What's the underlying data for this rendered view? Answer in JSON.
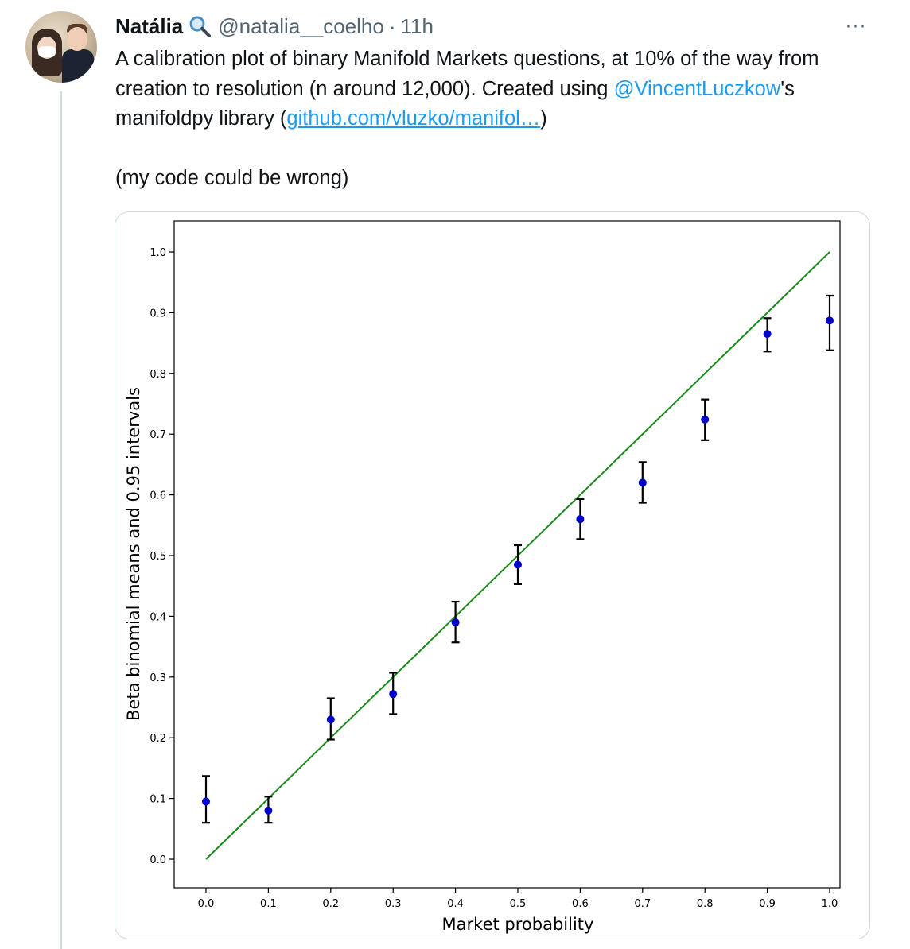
{
  "user": {
    "name": "Natália",
    "emoji_icon": "magnifying-glass-icon",
    "handle": "@natalia__coelho",
    "separator": "·",
    "time": "11h"
  },
  "more_label": "···",
  "tweet": {
    "text_1": "A calibration plot of binary Manifold Markets questions, at 10% of the way from creation to resolution (n around 12,000). Created using ",
    "mention": "@VincentLuczkow",
    "text_2": "'s manifoldpy library (",
    "link": "github.com/vluzko/manifol…",
    "text_3": ")\n\n(my code could be wrong)"
  },
  "chart_data": {
    "type": "scatter",
    "xlabel": "Market probability",
    "ylabel": "Beta binomial means and 0.95 intervals",
    "xlim": [
      0.0,
      1.0
    ],
    "ylim": [
      0.0,
      1.0
    ],
    "x_ticks": [
      "0.0",
      "0.1",
      "0.2",
      "0.3",
      "0.4",
      "0.5",
      "0.6",
      "0.7",
      "0.8",
      "0.9",
      "1.0"
    ],
    "y_ticks": [
      "0.0",
      "0.1",
      "0.2",
      "0.3",
      "0.4",
      "0.5",
      "0.6",
      "0.7",
      "0.8",
      "0.9",
      "1.0"
    ],
    "grid": false,
    "reference_line": {
      "from": [
        0.0,
        0.0
      ],
      "to": [
        1.0,
        1.0
      ],
      "color": "#1a8a1a"
    },
    "point_color": "#0000cc",
    "errorbar_color": "#000000",
    "points": [
      {
        "x": 0.0,
        "y": 0.095,
        "low": 0.06,
        "high": 0.137
      },
      {
        "x": 0.1,
        "y": 0.08,
        "low": 0.06,
        "high": 0.103
      },
      {
        "x": 0.2,
        "y": 0.23,
        "low": 0.197,
        "high": 0.265
      },
      {
        "x": 0.3,
        "y": 0.272,
        "low": 0.239,
        "high": 0.307
      },
      {
        "x": 0.4,
        "y": 0.39,
        "low": 0.357,
        "high": 0.424
      },
      {
        "x": 0.5,
        "y": 0.485,
        "low": 0.453,
        "high": 0.517
      },
      {
        "x": 0.6,
        "y": 0.56,
        "low": 0.527,
        "high": 0.593
      },
      {
        "x": 0.7,
        "y": 0.62,
        "low": 0.587,
        "high": 0.654
      },
      {
        "x": 0.8,
        "y": 0.724,
        "low": 0.69,
        "high": 0.757
      },
      {
        "x": 0.9,
        "y": 0.865,
        "low": 0.836,
        "high": 0.891
      },
      {
        "x": 1.0,
        "y": 0.887,
        "low": 0.838,
        "high": 0.928
      }
    ]
  }
}
